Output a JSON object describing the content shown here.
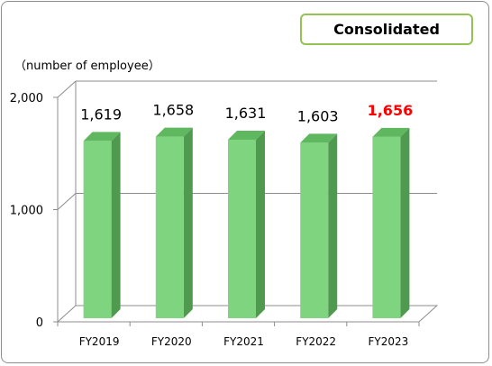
{
  "badge": "Consolidated",
  "unit_label": "（number of employee）",
  "chart_data": {
    "type": "bar",
    "categories": [
      "FY2019",
      "FY2020",
      "FY2021",
      "FY2022",
      "FY2023"
    ],
    "values": [
      1619,
      1658,
      1631,
      1603,
      1656
    ],
    "data_labels": [
      "1,619",
      "1,658",
      "1,631",
      "1,603",
      "1,656"
    ],
    "highlight_index": 4,
    "highlight_color": "#ff0000",
    "bar_color": "#7fd47f",
    "ylim": [
      0,
      2000
    ],
    "yticks": [
      0,
      1000,
      2000
    ],
    "ytick_labels": [
      "0",
      "1,000",
      "2,000"
    ],
    "grid": true,
    "legend": false
  }
}
